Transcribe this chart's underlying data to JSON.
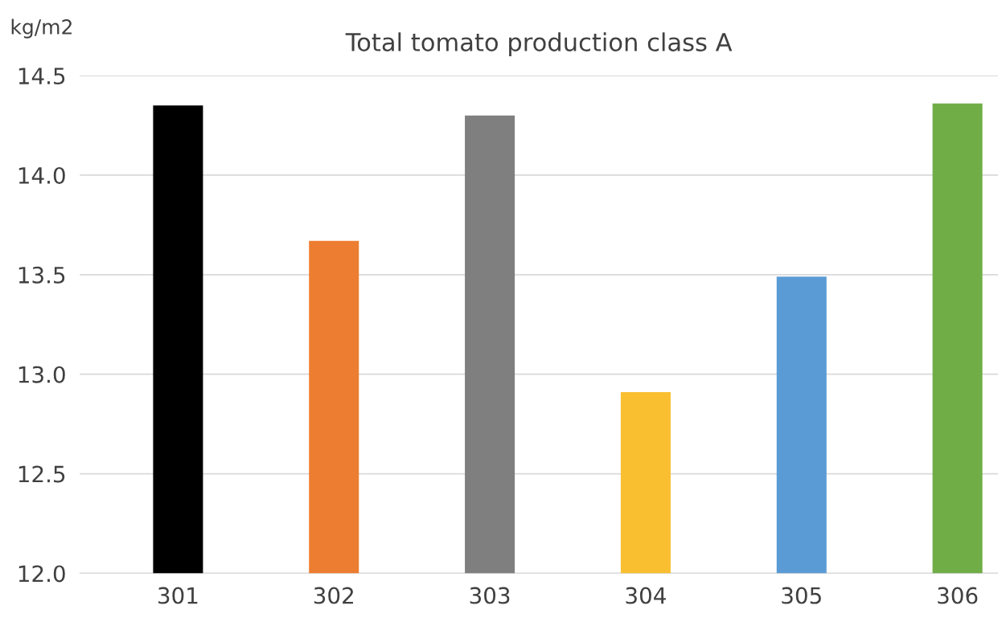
{
  "chart_data": {
    "type": "bar",
    "title": "Total tomato production class A",
    "ylabel": "kg/m2",
    "categories": [
      "301",
      "302",
      "303",
      "304",
      "305",
      "306"
    ],
    "values": [
      14.35,
      13.67,
      14.3,
      12.91,
      13.49,
      14.36
    ],
    "colors": [
      "#000000",
      "#ed7d31",
      "#7f7f7f",
      "#f9bf31",
      "#5b9bd5",
      "#70ad47"
    ],
    "ylim": [
      12.0,
      14.5
    ],
    "yticks": [
      {
        "value": 12.0,
        "label": "12.0"
      },
      {
        "value": 12.5,
        "label": "12.5"
      },
      {
        "value": 13.0,
        "label": "13.0"
      },
      {
        "value": 13.5,
        "label": "13.5"
      },
      {
        "value": 14.0,
        "label": "14.0"
      },
      {
        "value": 14.5,
        "label": "14.5"
      }
    ],
    "grid": "y",
    "legend": false
  }
}
